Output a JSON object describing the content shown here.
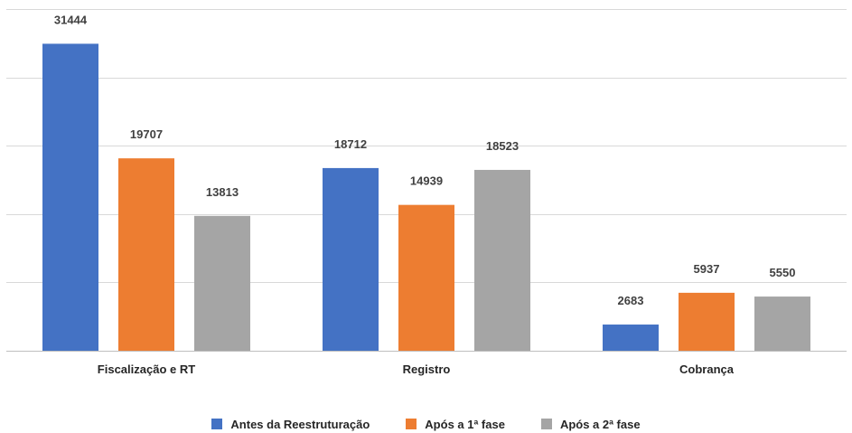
{
  "chart_data": {
    "type": "bar",
    "categories": [
      "Fiscalização e RT",
      "Registro",
      "Cobrança"
    ],
    "series": [
      {
        "name": "Antes da Reestruturação",
        "color": "#4472C4",
        "values": [
          31444,
          18712,
          2683
        ]
      },
      {
        "name": "Após a 1ª fase",
        "color": "#ED7D31",
        "values": [
          19707,
          14939,
          5937
        ]
      },
      {
        "name": "Após a 2ª fase",
        "color": "#A5A5A5",
        "values": [
          13813,
          18523,
          5550
        ]
      }
    ],
    "ylim": [
      0,
      35000
    ],
    "grid": true,
    "legend_position": "bottom",
    "title": "",
    "xlabel": "",
    "ylabel": ""
  }
}
